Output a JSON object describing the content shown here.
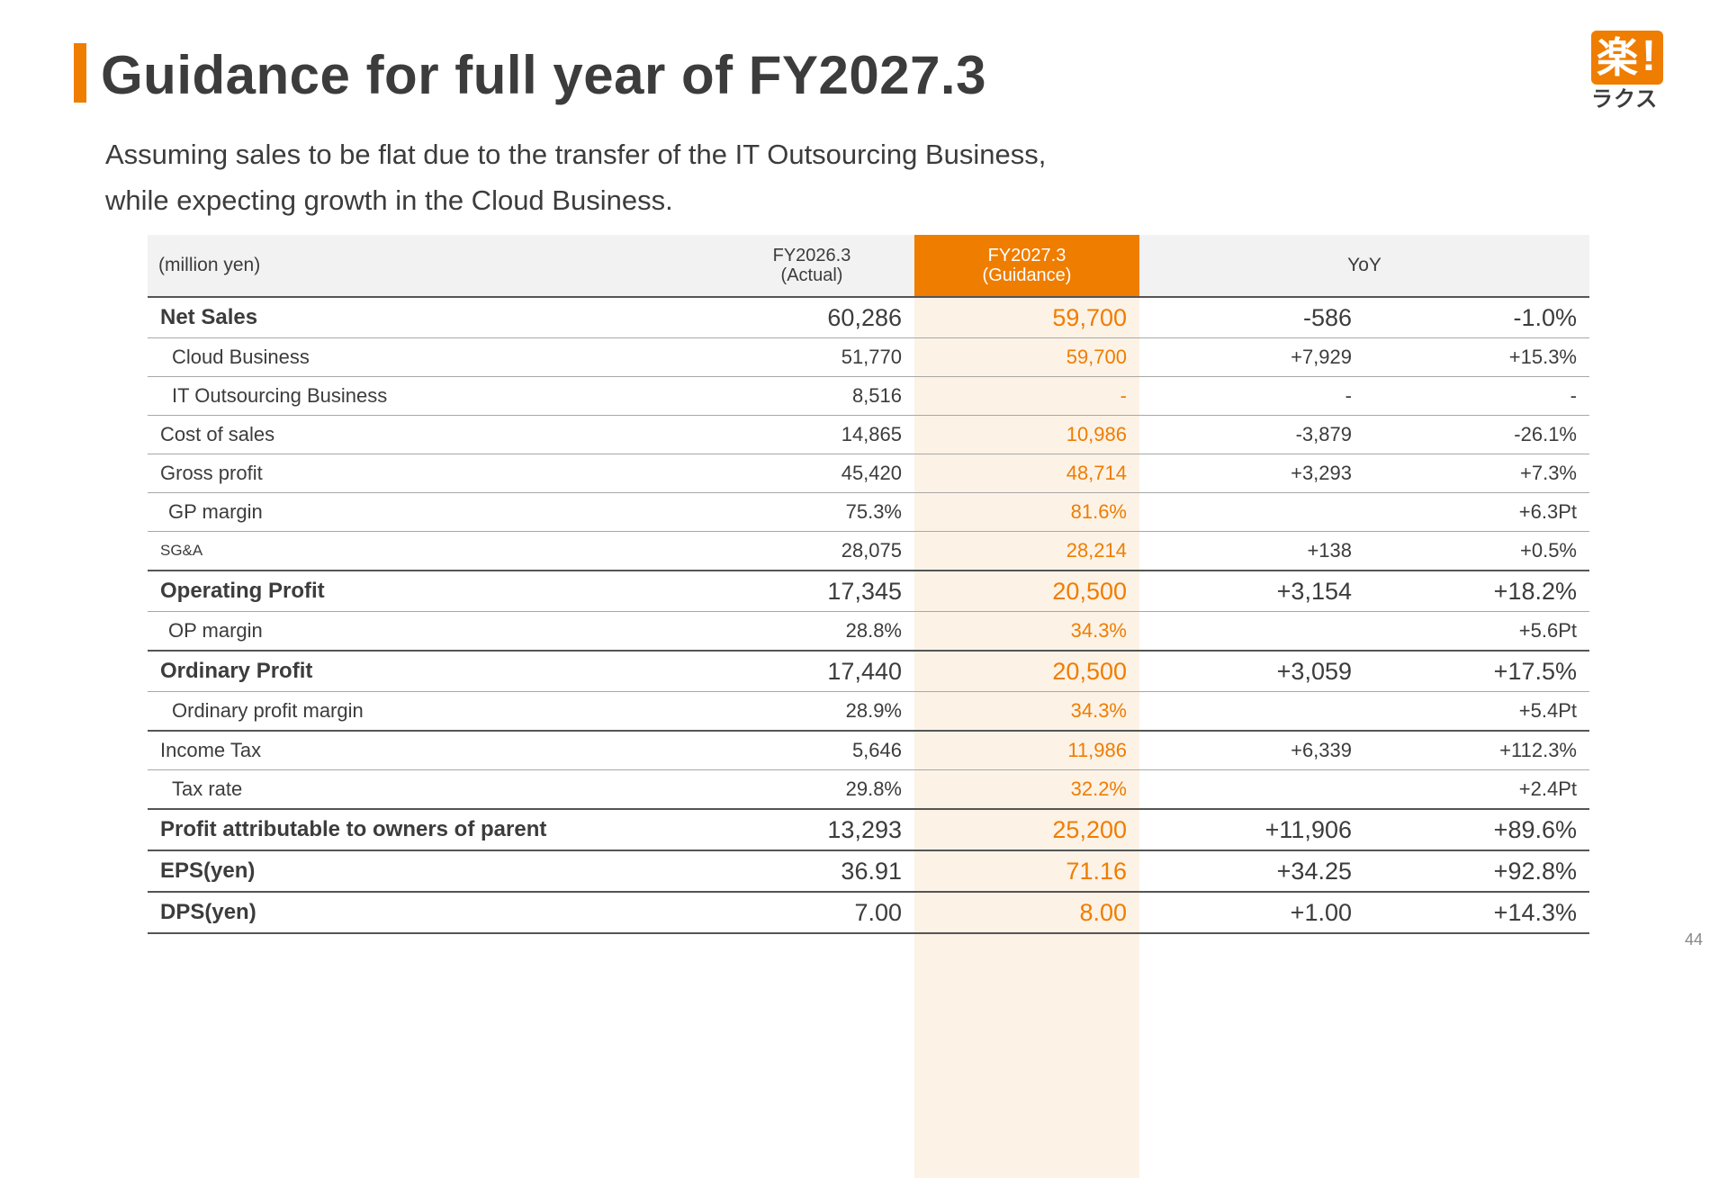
{
  "header": {
    "title": "Guidance for full year of FY2027.3",
    "subtitle_lines": [
      "Assuming sales to be flat due to the transfer of the IT Outsourcing Business,",
      "while expecting growth in the Cloud Business."
    ]
  },
  "logo": {
    "kanji": "楽",
    "exclamation": "!",
    "kana": "ラクス"
  },
  "colors": {
    "accent": "#ef7d00",
    "text": "#3c3c3c",
    "header_bg": "#f2f2f2",
    "guidance_col_bg": "#fdf2e6"
  },
  "table": {
    "unit_label": "(million yen)",
    "col_prev_line1": "FY2026.3",
    "col_prev_line2": "(Actual)",
    "col_guid_line1": "FY2027.3",
    "col_guid_line2": "(Guidance)",
    "col_yoy": "YoY",
    "rows": [
      {
        "label": "Net Sales",
        "actual": "60,286",
        "guidance": "59,700",
        "yoy_abs": "-586",
        "yoy_pct": "-1.0%"
      },
      {
        "label": "Cloud Business",
        "actual": "51,770",
        "guidance": "59,700",
        "yoy_abs": "+7,929",
        "yoy_pct": "+15.3%"
      },
      {
        "label": "IT Outsourcing Business",
        "actual": "8,516",
        "guidance": "-",
        "yoy_abs": "-",
        "yoy_pct": "-"
      },
      {
        "label": "Cost of sales",
        "actual": "14,865",
        "guidance": "10,986",
        "yoy_abs": "-3,879",
        "yoy_pct": "-26.1%"
      },
      {
        "label": "Gross profit",
        "actual": "45,420",
        "guidance": "48,714",
        "yoy_abs": "+3,293",
        "yoy_pct": "+7.3%"
      },
      {
        "label": "GP margin",
        "actual": "75.3%",
        "guidance": "81.6%",
        "yoy_abs": "",
        "yoy_pct": "+6.3Pt"
      },
      {
        "label": "SG&A",
        "actual": "28,075",
        "guidance": "28,214",
        "yoy_abs": "+138",
        "yoy_pct": "+0.5%"
      },
      {
        "label": "Operating Profit",
        "actual": "17,345",
        "guidance": "20,500",
        "yoy_abs": "+3,154",
        "yoy_pct": "+18.2%"
      },
      {
        "label": "OP margin",
        "actual": "28.8%",
        "guidance": "34.3%",
        "yoy_abs": "",
        "yoy_pct": "+5.6Pt"
      },
      {
        "label": "Ordinary Profit",
        "actual": "17,440",
        "guidance": "20,500",
        "yoy_abs": "+3,059",
        "yoy_pct": "+17.5%"
      },
      {
        "label": "Ordinary profit margin",
        "actual": "28.9%",
        "guidance": "34.3%",
        "yoy_abs": "",
        "yoy_pct": "+5.4Pt"
      },
      {
        "label": "Income Tax",
        "actual": "5,646",
        "guidance": "11,986",
        "yoy_abs": "+6,339",
        "yoy_pct": "+112.3%"
      },
      {
        "label": "Tax rate",
        "actual": "29.8%",
        "guidance": "32.2%",
        "yoy_abs": "",
        "yoy_pct": "+2.4Pt"
      },
      {
        "label": "Profit attributable to owners of parent",
        "actual": "13,293",
        "guidance": "25,200",
        "yoy_abs": "+11,906",
        "yoy_pct": "+89.6%"
      },
      {
        "label": "EPS(yen)",
        "actual": "36.91",
        "guidance": "71.16",
        "yoy_abs": "+34.25",
        "yoy_pct": "+92.8%"
      },
      {
        "label": "DPS(yen)",
        "actual": "7.00",
        "guidance": "8.00",
        "yoy_abs": "+1.00",
        "yoy_pct": "+14.3%"
      }
    ]
  },
  "page_number": "44"
}
